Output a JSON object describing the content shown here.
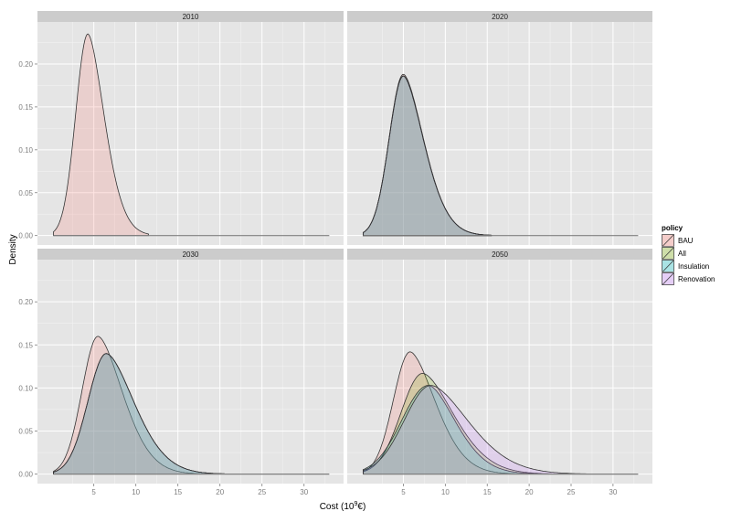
{
  "chart_data": {
    "type": "area",
    "subtype": "faceted density plot",
    "title": "",
    "xlabel": "Cost (10^9€)",
    "xlabel_base": "Cost (10",
    "xlabel_sup": "9",
    "xlabel_tail": "€)",
    "ylabel": "Density",
    "xlim": [
      -1.7,
      34.7
    ],
    "ylim": [
      -0.011,
      0.249
    ],
    "x_ticks": [
      5,
      10,
      15,
      20,
      25,
      30
    ],
    "y_ticks": [
      0.0,
      0.05,
      0.1,
      0.15,
      0.2
    ],
    "y_tick_labels": [
      "0.00",
      "0.05",
      "0.10",
      "0.15",
      "0.20"
    ],
    "grid": true,
    "legend": {
      "title": "policy",
      "position": "right",
      "entries": [
        {
          "label": "BAU",
          "color": "#F8766D"
        },
        {
          "label": "All",
          "color": "#7CAE00"
        },
        {
          "label": "Insulation",
          "color": "#00BFC4"
        },
        {
          "label": "Renovation",
          "color": "#C77CFF"
        }
      ]
    },
    "facets": [
      {
        "label": "2010",
        "series": [
          {
            "name": "BAU",
            "x_range": [
              0.2,
              11.5
            ],
            "mode": 4.3,
            "peak": 0.235,
            "skew_sd_left": 1.45,
            "skew_sd_right": 2.0
          }
        ]
      },
      {
        "label": "2020",
        "series": [
          {
            "name": "BAU",
            "x_range": [
              0.2,
              15.5
            ],
            "mode": 5.0,
            "peak": 0.188,
            "skew_sd_left": 1.7,
            "skew_sd_right": 2.5
          },
          {
            "name": "All",
            "x_range": [
              0.2,
              15.5
            ],
            "mode": 5.0,
            "peak": 0.186,
            "skew_sd_left": 1.7,
            "skew_sd_right": 2.5
          },
          {
            "name": "Insulation",
            "x_range": [
              0.2,
              15.5
            ],
            "mode": 5.0,
            "peak": 0.186,
            "skew_sd_left": 1.7,
            "skew_sd_right": 2.5
          },
          {
            "name": "Renovation",
            "x_range": [
              0.2,
              15.5
            ],
            "mode": 5.0,
            "peak": 0.186,
            "skew_sd_left": 1.7,
            "skew_sd_right": 2.5
          }
        ]
      },
      {
        "label": "2030",
        "series": [
          {
            "name": "BAU",
            "x_range": [
              0.2,
              19.0
            ],
            "mode": 5.5,
            "peak": 0.16,
            "skew_sd_left": 1.9,
            "skew_sd_right": 3.0
          },
          {
            "name": "All",
            "x_range": [
              0.2,
              20.5
            ],
            "mode": 6.5,
            "peak": 0.14,
            "skew_sd_left": 2.2,
            "skew_sd_right": 3.4
          },
          {
            "name": "Insulation",
            "x_range": [
              0.2,
              20.5
            ],
            "mode": 6.5,
            "peak": 0.14,
            "skew_sd_left": 2.2,
            "skew_sd_right": 3.4
          },
          {
            "name": "Renovation",
            "x_range": [
              0.2,
              20.5
            ],
            "mode": 6.5,
            "peak": 0.14,
            "skew_sd_left": 2.2,
            "skew_sd_right": 3.4
          }
        ]
      },
      {
        "label": "2050",
        "series": [
          {
            "name": "BAU",
            "x_range": [
              0.2,
              20.5
            ],
            "mode": 5.8,
            "peak": 0.142,
            "skew_sd_left": 2.0,
            "skew_sd_right": 3.1
          },
          {
            "name": "All",
            "x_range": [
              0.2,
              24.0
            ],
            "mode": 7.3,
            "peak": 0.117,
            "skew_sd_left": 2.6,
            "skew_sd_right": 3.8
          },
          {
            "name": "Insulation",
            "x_range": [
              0.2,
              20.5
            ],
            "mode": 8.0,
            "peak": 0.103,
            "skew_sd_left": 3.2,
            "skew_sd_right": 3.3
          },
          {
            "name": "Renovation",
            "x_range": [
              0.2,
              27.2
            ],
            "mode": 8.3,
            "peak": 0.103,
            "skew_sd_left": 3.2,
            "skew_sd_right": 4.6
          }
        ]
      }
    ]
  }
}
